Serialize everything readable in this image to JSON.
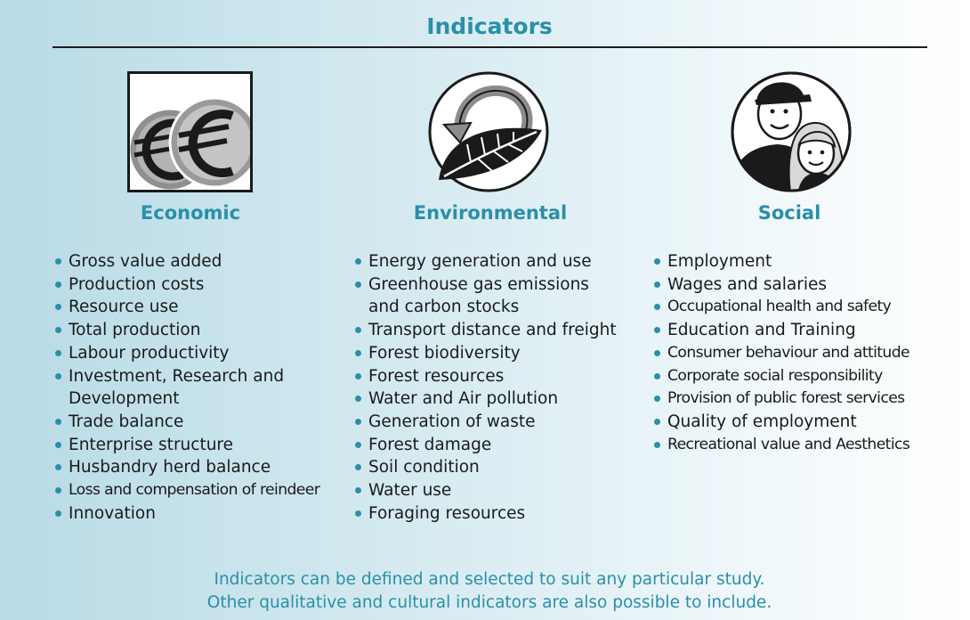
{
  "title": "Indicators",
  "columns": [
    {
      "heading": "Economic",
      "icon": "euro-coins-icon",
      "items": [
        "Gross value added",
        "Production costs",
        "Resource use",
        "Total production",
        "Labour productivity",
        "Investment, Research and Development",
        "Trade balance",
        "Enterprise structure",
        "Husbandry herd balance",
        "Loss and compensation of reindeer",
        "Innovation"
      ]
    },
    {
      "heading": "Environmental",
      "icon": "leaf-cycle-icon",
      "items": [
        "Energy generation and use",
        "Greenhouse gas emissions and carbon stocks",
        "Transport distance and freight",
        "Forest biodiversity",
        "Forest resources",
        "Water and Air pollution",
        "Generation of waste",
        "Forest damage",
        "Soil condition",
        "Water use",
        "Foraging resources"
      ]
    },
    {
      "heading": "Social",
      "icon": "people-icon",
      "items": [
        "Employment",
        "Wages and salaries",
        "Occupational health and safety",
        "Education and Training",
        "Consumer behaviour and attitude",
        "Corporate social responsibility",
        "Provision of public forest services",
        "Quality of employment",
        "Recreational value and Aesthetics"
      ]
    }
  ],
  "footer": {
    "line1": "Indicators can be defined and selected to suit any particular study.",
    "line2": "Other qualitative and cultural indicators are also possible to include."
  },
  "colors": {
    "accent": "#2a8fa8",
    "text": "#1a1a1a",
    "rule": "#1c1c1c"
  }
}
